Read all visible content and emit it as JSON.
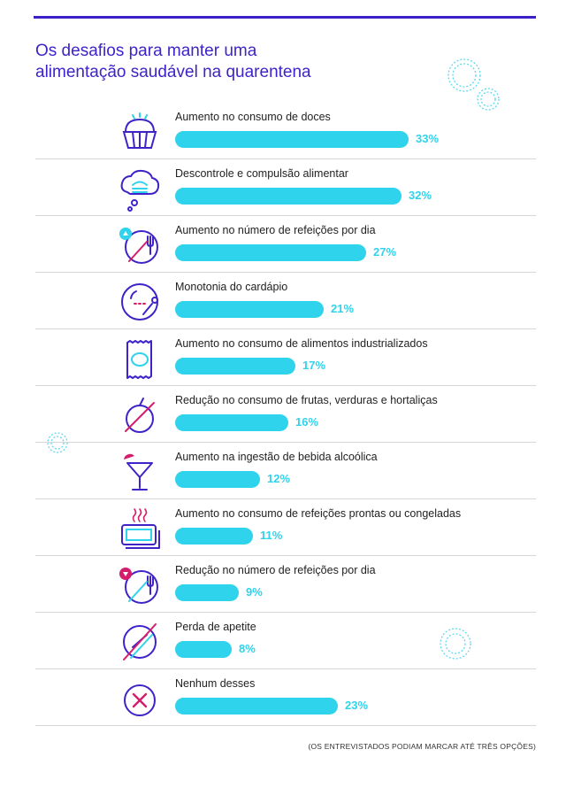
{
  "title_line1": "Os desafios para manter uma",
  "title_line2": "alimentação saudável na quarentena",
  "footnote": "(OS ENTREVISTADOS PODIAM MARCAR ATÉ TRÊS OPÇÕES)",
  "colors": {
    "title": "#3f23c9",
    "bar": "#2fd3ec",
    "icon": "#3f23c9",
    "accent": "#d61d6b"
  },
  "chart_data": {
    "type": "bar",
    "orientation": "horizontal",
    "xlim": [
      0,
      35
    ],
    "items": [
      {
        "label": "Aumento no consumo de doces",
        "value": 33,
        "value_label": "33%",
        "icon": "cupcake-icon"
      },
      {
        "label": "Descontrole e compulsão alimentar",
        "value": 32,
        "value_label": "32%",
        "icon": "burger-thought-icon"
      },
      {
        "label": "Aumento no número de refeições por dia",
        "value": 27,
        "value_label": "27%",
        "icon": "plate-up-icon"
      },
      {
        "label": "Monotonia do cardápio",
        "value": 21,
        "value_label": "21%",
        "icon": "plate-spoon-icon"
      },
      {
        "label": "Aumento no consumo de alimentos industrializados",
        "value": 17,
        "value_label": "17%",
        "icon": "package-icon"
      },
      {
        "label": "Redução no consumo de frutas, verduras e hortaliças",
        "value": 16,
        "value_label": "16%",
        "icon": "fruit-crossed-icon"
      },
      {
        "label": "Aumento na ingestão de bebida alcoólica",
        "value": 12,
        "value_label": "12%",
        "icon": "cocktail-icon"
      },
      {
        "label": "Aumento no consumo de refeições prontas ou congeladas",
        "value": 11,
        "value_label": "11%",
        "icon": "frozen-meal-icon"
      },
      {
        "label": "Redução no número de refeições por dia",
        "value": 9,
        "value_label": "9%",
        "icon": "plate-down-icon"
      },
      {
        "label": "Perda de apetite",
        "value": 8,
        "value_label": "8%",
        "icon": "plate-crossed-icon"
      },
      {
        "label": "Nenhum desses",
        "value": 23,
        "value_label": "23%",
        "icon": "x-circle-icon"
      }
    ]
  }
}
